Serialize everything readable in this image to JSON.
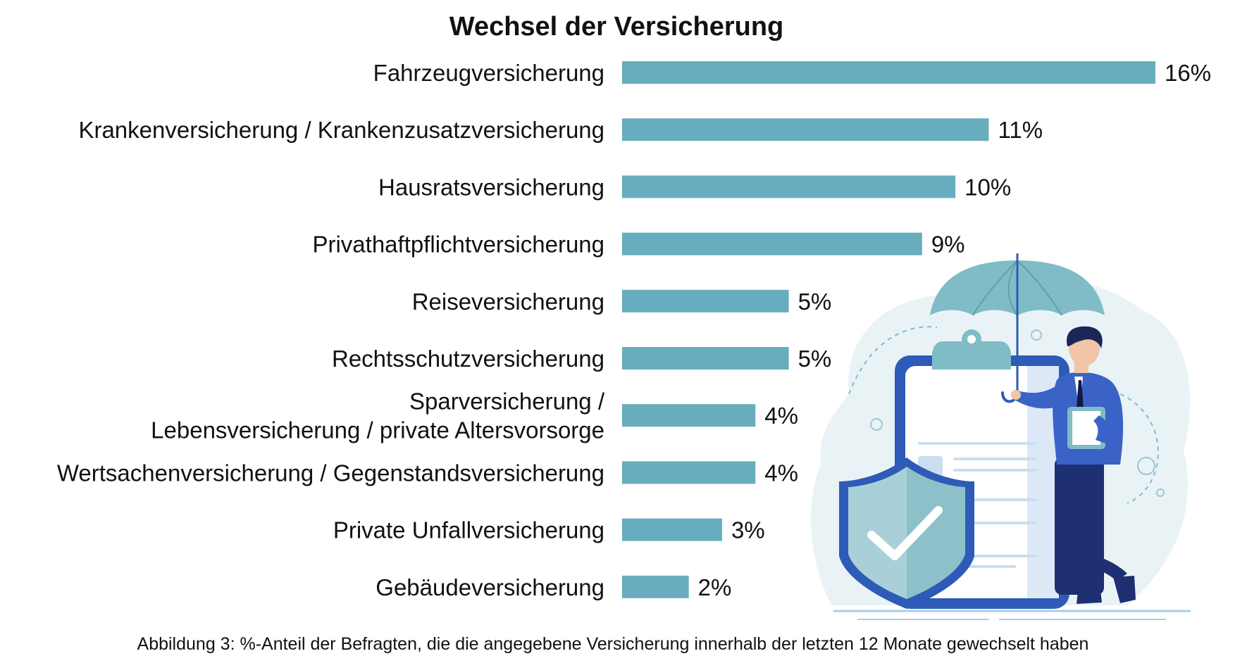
{
  "chart_data": {
    "type": "bar",
    "orientation": "horizontal",
    "title": "Wechsel der Versicherung",
    "categories": [
      [
        "Fahrzeugversicherung"
      ],
      [
        "Krankenversicherung / Krankenzusatzversicherung"
      ],
      [
        "Hausratsversicherung"
      ],
      [
        "Privathaftpflichtversicherung"
      ],
      [
        "Reiseversicherung"
      ],
      [
        "Rechtsschutzversicherung"
      ],
      [
        "Sparversicherung /",
        "Lebensversicherung / private Altersvorsorge"
      ],
      [
        "Wertsachenversicherung / Gegenstandsversicherung"
      ],
      [
        "Private Unfallversicherung"
      ],
      [
        "Gebäudeversicherung"
      ]
    ],
    "values": [
      16,
      11,
      10,
      9,
      5,
      5,
      4,
      4,
      3,
      2
    ],
    "value_labels": [
      "16%",
      "11%",
      "10%",
      "9%",
      "5%",
      "5%",
      "4%",
      "4%",
      "3%",
      "2%"
    ],
    "unit": "%",
    "xlim": [
      0,
      16
    ],
    "grid": false,
    "bar_color": "#68adbd"
  },
  "caption": "Abbildung 3: %-Anteil der Befragten, die die angegebene Versicherung innerhalb der letzten 12 Monate gewechselt haben",
  "colors": {
    "bar": "#68adbd",
    "illustration_dark_blue": "#2d5bb7",
    "illustration_teal": "#7fbcc6",
    "illustration_bg": "#e9f3f5"
  }
}
